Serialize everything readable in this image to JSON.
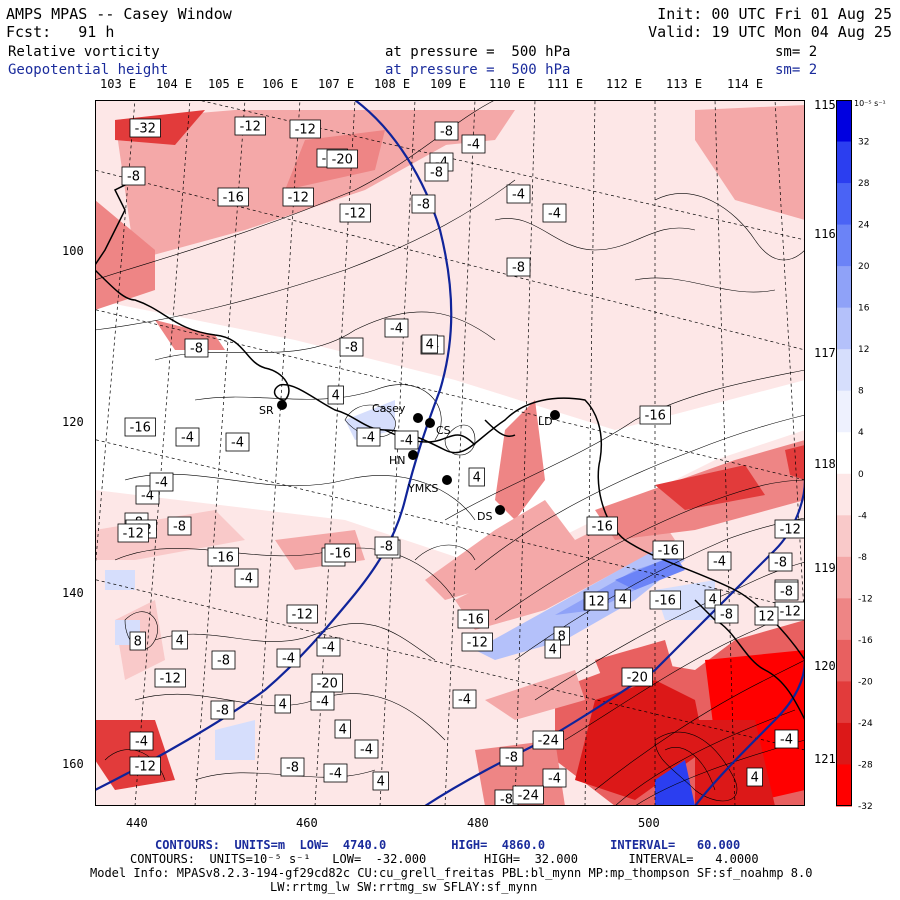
{
  "header": {
    "title": "AMPS MPAS -- Casey Window",
    "fcst": "Fcst:   91 h",
    "init": "Init: 00 UTC Fri 01 Aug 25",
    "valid": "Valid: 19 UTC Mon 04 Aug 25",
    "field1": "Relative vorticity",
    "field1_pressure": "at pressure =  500 hPa",
    "field1_sm": "sm= 2",
    "field2": "Geopotential height",
    "field2_pressure": "at pressure =  500 hPa",
    "field2_sm": "sm= 2"
  },
  "lon_labels_top": [
    "103 E",
    "104 E",
    "105 E",
    "106 E",
    "107 E",
    "108 E",
    "109 E",
    "110 E",
    "111 E",
    "112 E",
    "113 E",
    "114 E"
  ],
  "lon_labels_right": [
    "115 E",
    "116 E",
    "117 E",
    "118 E",
    "119 E",
    "120 E",
    "121 E"
  ],
  "y_axis_ticks": [
    "100",
    "120",
    "140",
    "160"
  ],
  "x_axis_ticks": [
    "440",
    "460",
    "480",
    "500"
  ],
  "stations": [
    {
      "name": "SR"
    },
    {
      "name": "Casey"
    },
    {
      "name": "CS"
    },
    {
      "name": "HN"
    },
    {
      "name": "YMKS"
    },
    {
      "name": "DS"
    },
    {
      "name": "LD"
    }
  ],
  "contour_labels": [
    "-32",
    "-12",
    "-12",
    "-16",
    "-8",
    "-4",
    "-8",
    "-20",
    "-8",
    "-16",
    "-12",
    "-12",
    "-4",
    "-4",
    "-8",
    "-4",
    "-8",
    "-4",
    "-4",
    "-8",
    "-8",
    "-4",
    "-4",
    "-4",
    "-16",
    "-4",
    "-4",
    "4",
    "4",
    "-4",
    "-8",
    "-8",
    "-8",
    "-4",
    "-16",
    "-4",
    "-12",
    "-20",
    "-8",
    "-4",
    "-12",
    "-8",
    "-16",
    "-16",
    "-12",
    "-16",
    "-8",
    "-16",
    "-16",
    "4",
    "12",
    "-4",
    "8",
    "8",
    "-12",
    "-8",
    "-4",
    "-20",
    "-12",
    "12",
    "-4",
    "-4",
    "4",
    "-4",
    "-24",
    "-8",
    "-8",
    "-12",
    "-4",
    "4",
    "-4",
    "4",
    "-8",
    "-24",
    "-8",
    "-8",
    "-4",
    "-4",
    "-12",
    "-12",
    "4",
    "4",
    "4",
    "4",
    "4",
    "-16",
    "12",
    "-8"
  ],
  "colorbar": {
    "unit_label": "10⁻⁵ s⁻¹",
    "labels": [
      "32",
      "28",
      "24",
      "20",
      "16",
      "12",
      "8",
      "4",
      "0",
      "-4",
      "-8",
      "-12",
      "-16",
      "-20",
      "-24",
      "-28",
      "-32"
    ],
    "colors": [
      "#0000e0",
      "#2b3ef0",
      "#4a63f5",
      "#6b83f7",
      "#8fa2f8",
      "#b4c1fa",
      "#d6defc",
      "#eef1fe",
      "#ffffff",
      "#fde7e7",
      "#f9c9c9",
      "#f4a8a8",
      "#ee8585",
      "#e86060",
      "#e23b3b",
      "#dc1818",
      "#ff0000"
    ]
  },
  "footer": {
    "line1": "CONTOURS:  UNITS=m  LOW=  4740.0         HIGH=  4860.0         INTERVAL=   60.000",
    "line2": "CONTOURS:  UNITS=10⁻⁵ s⁻¹   LOW=  -32.000        HIGH=  32.000       INTERVAL=   4.0000",
    "line3": "Model Info: MPASv8.2.3-194-gf29cd82c CU:cu_grell_freitas PBL:bl_mynn MP:mp_thompson SF:sf_noahmp 8.0",
    "line4": "LW:rrtmg_lw SW:rrtmg_sw SFLAY:sf_mynn"
  }
}
